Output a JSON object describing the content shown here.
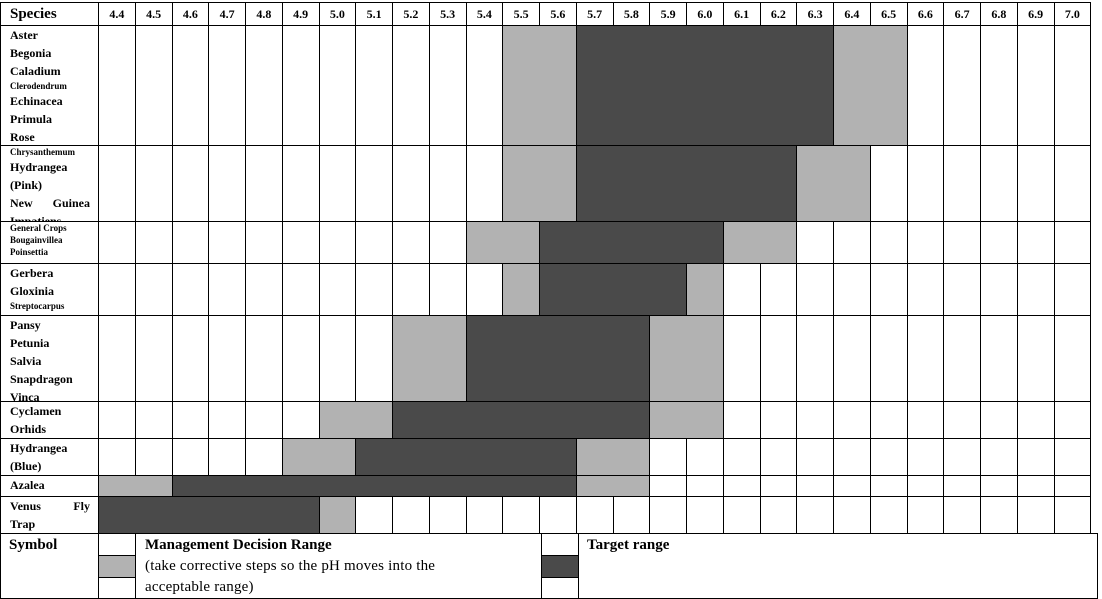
{
  "table": {
    "species_header": "Species",
    "ph_values": [
      "4.4",
      "4.5",
      "4.6",
      "4.7",
      "4.8",
      "4.9",
      "5.0",
      "5.1",
      "5.2",
      "5.3",
      "5.4",
      "5.5",
      "5.6",
      "5.7",
      "5.8",
      "5.9",
      "6.0",
      "6.1",
      "6.2",
      "6.3",
      "6.4",
      "6.5",
      "6.6",
      "6.7",
      "6.8",
      "6.9",
      "7.0"
    ],
    "groups": [
      {
        "names": [
          {
            "text": "Aster"
          },
          {
            "text": "Begonia"
          },
          {
            "text": "Caladium"
          },
          {
            "text": "Clerodendrum",
            "small": true
          },
          {
            "text": "Echinacea"
          },
          {
            "text": "Primula"
          },
          {
            "text": "Rose"
          }
        ],
        "management_low": [
          "5.5",
          "5.6"
        ],
        "target": [
          "5.7",
          "6.3"
        ],
        "management_high": [
          "6.4",
          "6.5"
        ]
      },
      {
        "names": [
          {
            "text": "Chrysanthemum",
            "small": true
          },
          {
            "text": "Hydrangea"
          },
          {
            "text": "(Pink)"
          },
          {
            "text": "New Guinea",
            "justified": true
          },
          {
            "text": "Impatiens"
          }
        ],
        "management_low": [
          "5.5",
          "5.6"
        ],
        "target": [
          "5.7",
          "6.2"
        ],
        "management_high": [
          "6.3",
          "6.4"
        ]
      },
      {
        "names": [
          {
            "text": "General Crops",
            "small": true
          },
          {
            "text": "Bougainvillea",
            "small": true
          },
          {
            "text": "Poinsettia",
            "small": true
          }
        ],
        "management_low": [
          "5.4",
          "5.5"
        ],
        "target": [
          "5.6",
          "6.0"
        ],
        "management_high": [
          "6.1",
          "6.2"
        ]
      },
      {
        "names": [
          {
            "text": "Gerbera"
          },
          {
            "text": "Gloxinia"
          },
          {
            "text": "Streptocarpus",
            "small": true
          }
        ],
        "management_low": [
          "5.5",
          "5.5"
        ],
        "target": [
          "5.6",
          "5.9"
        ],
        "management_high": [
          "6.0",
          "6.0"
        ]
      },
      {
        "names": [
          {
            "text": "Pansy"
          },
          {
            "text": "Petunia"
          },
          {
            "text": "Salvia"
          },
          {
            "text": "Snapdragon"
          },
          {
            "text": "Vinca"
          }
        ],
        "management_low": [
          "5.2",
          "5.3"
        ],
        "target": [
          "5.4",
          "5.8"
        ],
        "management_high": [
          "5.9",
          "6.0"
        ]
      },
      {
        "names": [
          {
            "text": "Cyclamen"
          },
          {
            "text": "Orhids"
          }
        ],
        "management_low": [
          "5.0",
          "5.1"
        ],
        "target": [
          "5.2",
          "5.8"
        ],
        "management_high": [
          "5.9",
          "6.0"
        ]
      },
      {
        "names": [
          {
            "text": "Hydrangea"
          },
          {
            "text": "(Blue)"
          }
        ],
        "management_low": [
          "4.9",
          "5.0"
        ],
        "target": [
          "5.1",
          "5.6"
        ],
        "management_high": [
          "5.7",
          "5.8"
        ]
      },
      {
        "names": [
          {
            "text": "Azalea"
          }
        ],
        "management_low": [
          "4.4",
          "4.5"
        ],
        "target": [
          "4.6",
          "5.6"
        ],
        "management_high": [
          "5.7",
          "5.8"
        ]
      },
      {
        "names": [
          {
            "text": "Venus Fly",
            "justified": true
          },
          {
            "text": "Trap"
          }
        ],
        "management_low": null,
        "target": [
          "4.4",
          "4.9"
        ],
        "management_high": [
          "5.0",
          "5.0"
        ]
      }
    ]
  },
  "legend": {
    "symbol_label": "Symbol",
    "management_title": "Management Decision Range",
    "management_desc_line1": "(take corrective steps so the pH moves into the",
    "management_desc_line2": "acceptable range)",
    "target_title": "Target range"
  },
  "colors": {
    "management": "#b2b2b2",
    "target": "#4a4a4a",
    "grid": "#000000"
  }
}
